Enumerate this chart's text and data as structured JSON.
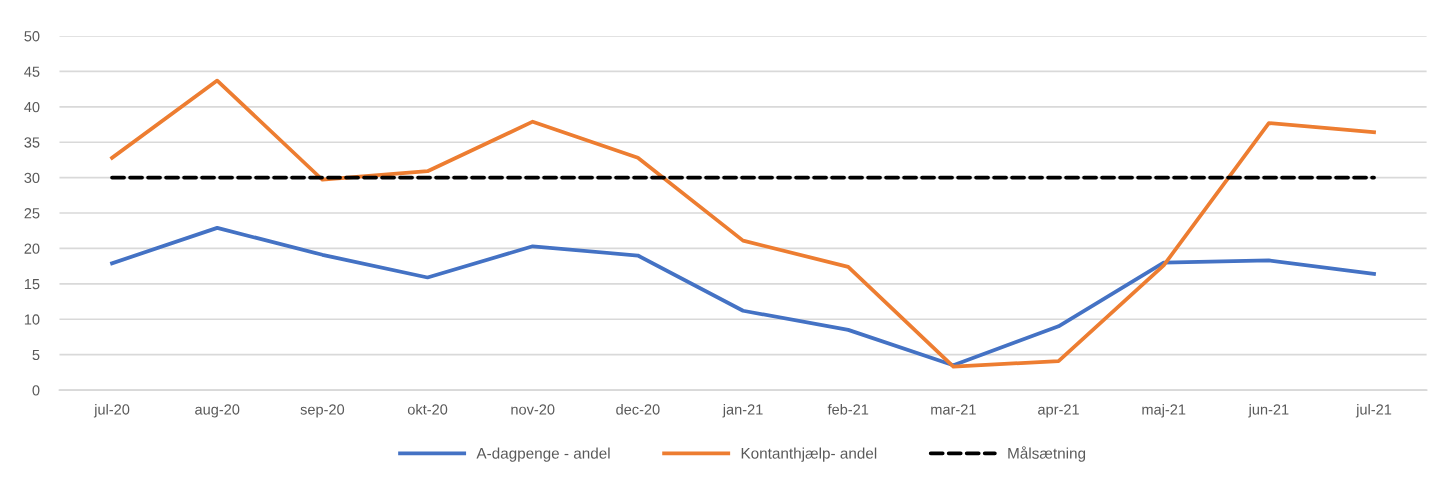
{
  "chart_data": {
    "type": "line",
    "categories": [
      "jul-20",
      "aug-20",
      "sep-20",
      "okt-20",
      "nov-20",
      "dec-20",
      "jan-21",
      "feb-21",
      "mar-21",
      "apr-21",
      "maj-21",
      "jun-21",
      "jul-21"
    ],
    "series": [
      {
        "name": "A-dagpenge - andel",
        "color": "#4472c4",
        "line_style": "solid",
        "values": [
          17.9,
          22.9,
          19.1,
          15.9,
          20.3,
          19.0,
          11.2,
          8.5,
          3.5,
          9.0,
          18.0,
          18.3,
          16.4
        ]
      },
      {
        "name": "Kontanthjælp- andel",
        "color": "#ed7d31",
        "line_style": "solid",
        "values": [
          32.8,
          43.7,
          29.7,
          30.9,
          37.9,
          32.8,
          21.1,
          17.4,
          3.3,
          4.1,
          17.6,
          37.7,
          36.4
        ]
      },
      {
        "name": "Målsætning",
        "color": "#000000",
        "line_style": "dashed",
        "values": [
          30,
          30,
          30,
          30,
          30,
          30,
          30,
          30,
          30,
          30,
          30,
          30,
          30
        ]
      }
    ],
    "ylim": [
      0,
      50
    ],
    "yticks": [
      0,
      5,
      10,
      15,
      20,
      25,
      30,
      35,
      40,
      45,
      50
    ],
    "grid": "y",
    "legend": "bottom"
  }
}
